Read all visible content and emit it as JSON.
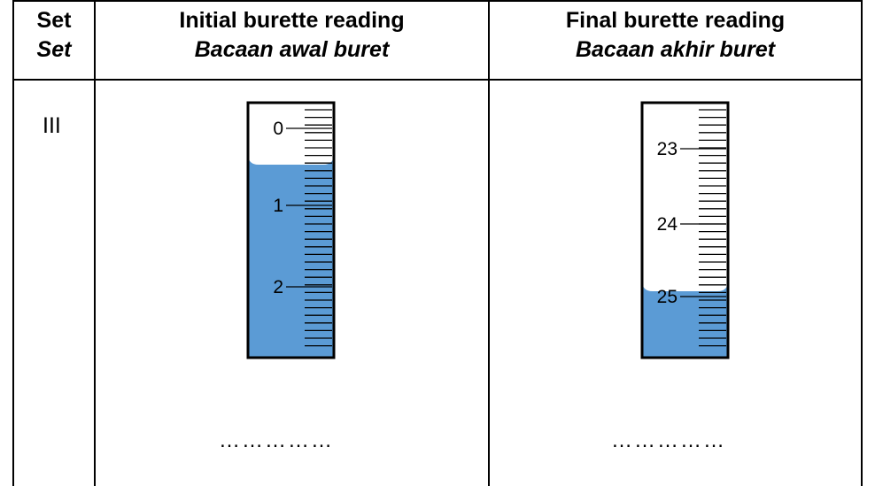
{
  "table": {
    "headers": {
      "set": {
        "en": "Set",
        "ms": "Set"
      },
      "initial": {
        "en": "Initial burette reading",
        "ms": "Bacaan awal buret"
      },
      "final": {
        "en": "Final burette reading",
        "ms": "Bacaan akhir buret"
      }
    },
    "row": {
      "set_label": "III",
      "initial_answer": "……………",
      "final_answer": "……………"
    }
  },
  "burettes": {
    "initial": {
      "scale_labels": [
        "0",
        "1",
        "2"
      ],
      "scale_start": 0,
      "reading_value": 0.5,
      "liquid_color": "#5B9BD5"
    },
    "final": {
      "scale_labels": [
        "23",
        "24",
        "25"
      ],
      "scale_start": 22.5,
      "reading_value": 25.0,
      "liquid_color": "#5B9BD5"
    }
  }
}
